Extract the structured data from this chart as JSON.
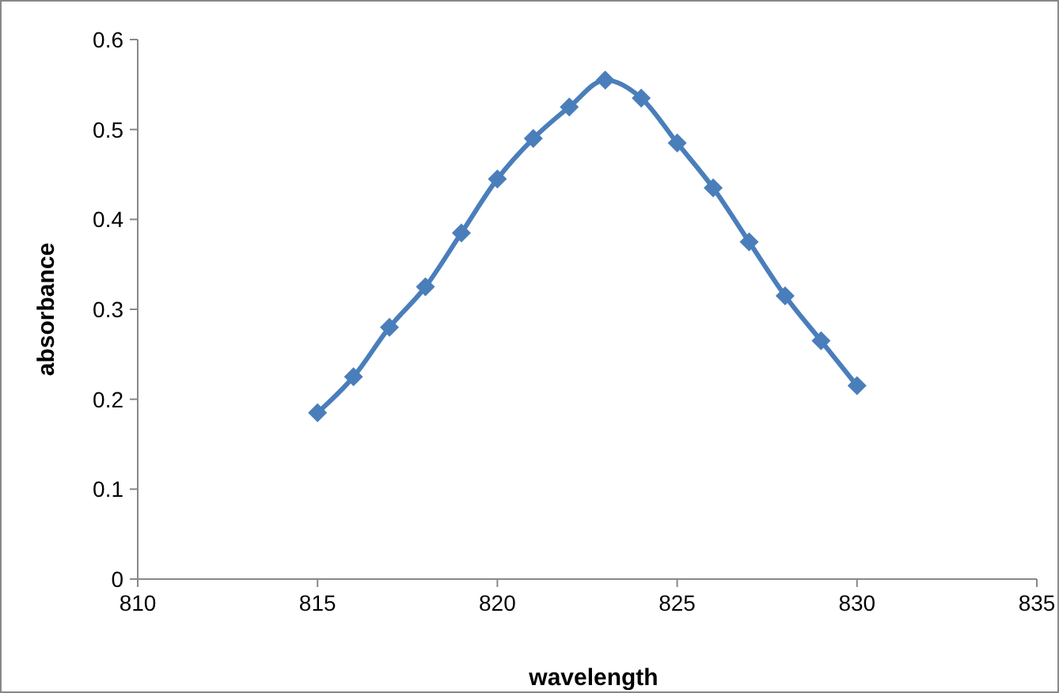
{
  "chart_data": {
    "type": "line",
    "xlabel": "wavelength",
    "ylabel": "absorbance",
    "x": [
      815,
      816,
      817,
      818,
      819,
      820,
      821,
      822,
      823,
      824,
      825,
      826,
      827,
      828,
      829,
      830
    ],
    "series": [
      {
        "color": "#4a7ebb",
        "values": [
          0.185,
          0.225,
          0.28,
          0.325,
          0.385,
          0.445,
          0.49,
          0.525,
          0.555,
          0.535,
          0.485,
          0.435,
          0.375,
          0.315,
          0.265,
          0.215
        ]
      }
    ],
    "xlim": [
      810,
      835
    ],
    "xticks": [
      810,
      815,
      820,
      825,
      830,
      835
    ],
    "ylim": [
      0,
      0.6
    ],
    "yticks": [
      {
        "value": 0,
        "label": "0"
      },
      {
        "value": 0.1,
        "label": "0.1"
      },
      {
        "value": 0.2,
        "label": "0.2"
      },
      {
        "value": 0.3,
        "label": "0.3"
      },
      {
        "value": 0.4,
        "label": "0.4"
      },
      {
        "value": 0.5,
        "label": "0.5"
      },
      {
        "value": 0.6,
        "label": "0.6"
      }
    ],
    "grid": false,
    "marker": "diamond",
    "line_style": "solid"
  }
}
